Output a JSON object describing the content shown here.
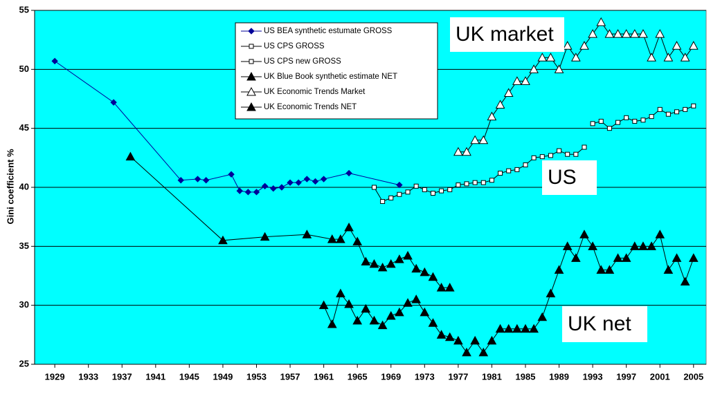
{
  "chart_data": {
    "type": "line",
    "y_label": "Gini coefficient %",
    "xlim": [
      1926.6,
      2006.5
    ],
    "xticks": [
      1929,
      1933,
      1937,
      1941,
      1945,
      1949,
      1953,
      1957,
      1961,
      1965,
      1969,
      1973,
      1977,
      1981,
      1985,
      1989,
      1993,
      1997,
      2001,
      2005
    ],
    "ylim": [
      25,
      55
    ],
    "yticks": [
      25,
      30,
      35,
      40,
      45,
      50,
      55
    ],
    "grid": true,
    "background": "#00ffff",
    "annotations": [
      {
        "text": "UK market"
      },
      {
        "text": "US"
      },
      {
        "text": "UK net"
      }
    ],
    "series": [
      {
        "name": "US BEA synthetic estumate GROSS",
        "color": "#000099",
        "marker": "diamond",
        "x": [
          1929,
          1936,
          1944,
          1946,
          1947,
          1950,
          1951,
          1952,
          1953,
          1954,
          1955,
          1956,
          1957,
          1958,
          1959,
          1960,
          1961,
          1964,
          1970
        ],
        "values": [
          50.7,
          47.2,
          40.6,
          40.7,
          40.6,
          41.1,
          39.7,
          39.6,
          39.6,
          40.1,
          39.9,
          40.0,
          40.4,
          40.4,
          40.7,
          40.5,
          40.7,
          41.2,
          40.2
        ]
      },
      {
        "name": "US CPS GROSS",
        "color": "#000000",
        "marker": "square-open",
        "x": [
          1967,
          1968,
          1969,
          1970,
          1971,
          1972,
          1973,
          1974,
          1975,
          1976,
          1977,
          1978,
          1979,
          1980,
          1981,
          1982,
          1983,
          1984,
          1985,
          1986,
          1987,
          1988,
          1989,
          1990,
          1991,
          1992
        ],
        "values": [
          40.0,
          38.8,
          39.1,
          39.4,
          39.6,
          40.1,
          39.8,
          39.5,
          39.7,
          39.8,
          40.2,
          40.3,
          40.4,
          40.4,
          40.6,
          41.2,
          41.4,
          41.5,
          41.9,
          42.5,
          42.6,
          42.7,
          43.1,
          42.8,
          42.8,
          43.4
        ]
      },
      {
        "name": "US CPS new GROSS",
        "color": "#000000",
        "marker": "square-open",
        "x": [
          1993,
          1994,
          1995,
          1996,
          1997,
          1998,
          1999,
          2000,
          2001,
          2002,
          2003,
          2004,
          2005
        ],
        "values": [
          45.4,
          45.6,
          45.0,
          45.5,
          45.9,
          45.6,
          45.7,
          46.0,
          46.6,
          46.2,
          46.4,
          46.6,
          46.9
        ]
      },
      {
        "name": "UK Blue Book synthetic estimate NET",
        "color": "#000000",
        "marker": "triangle",
        "x": [
          1938,
          1949,
          1954,
          1959,
          1962,
          1963,
          1964,
          1965,
          1966,
          1967,
          1968,
          1969,
          1970,
          1971,
          1972,
          1973,
          1974,
          1975,
          1976
        ],
        "values": [
          42.6,
          35.5,
          35.8,
          36.0,
          35.6,
          35.6,
          36.6,
          35.4,
          33.7,
          33.5,
          33.2,
          33.5,
          33.9,
          34.2,
          33.1,
          32.8,
          32.4,
          31.5,
          31.5
        ]
      },
      {
        "name": "UK Economic Trends Market",
        "color": "#000000",
        "marker": "triangle-open",
        "x": [
          1977,
          1978,
          1979,
          1980,
          1981,
          1982,
          1983,
          1984,
          1985,
          1986,
          1987,
          1988,
          1989,
          1990,
          1991,
          1992,
          1993,
          1994,
          1995,
          1996,
          1997,
          1998,
          1999,
          2000,
          2001,
          2002,
          2003,
          2004,
          2005
        ],
        "values": [
          43,
          43,
          44,
          44,
          46,
          47,
          48,
          49,
          49,
          50,
          51,
          51,
          50,
          52,
          51,
          52,
          53,
          54,
          53,
          53,
          53,
          53,
          53,
          51,
          53,
          51,
          52,
          51,
          52
        ]
      },
      {
        "name": "UK Economic Trends NET",
        "color": "#000000",
        "marker": "triangle",
        "x": [
          1961,
          1962,
          1963,
          1964,
          1965,
          1966,
          1967,
          1968,
          1969,
          1970,
          1971,
          1972,
          1973,
          1974,
          1975,
          1976,
          1977,
          1978,
          1979,
          1980,
          1981,
          1982,
          1983,
          1984,
          1985,
          1986,
          1987,
          1988,
          1989,
          1990,
          1991,
          1992,
          1993,
          1994,
          1995,
          1996,
          1997,
          1998,
          1999,
          2000,
          2001,
          2002,
          2003,
          2004,
          2005
        ],
        "values": [
          30,
          28.4,
          31,
          30.1,
          28.7,
          29.7,
          28.7,
          28.3,
          29.1,
          29.4,
          30.2,
          30.5,
          29.4,
          28.5,
          27.5,
          27.3,
          27,
          26,
          27,
          26,
          27,
          28,
          28,
          28,
          28,
          28,
          29,
          31,
          33,
          35,
          34,
          36,
          35,
          33,
          33,
          34,
          34,
          35,
          35,
          35,
          36,
          33,
          34,
          32,
          34
        ]
      }
    ]
  }
}
